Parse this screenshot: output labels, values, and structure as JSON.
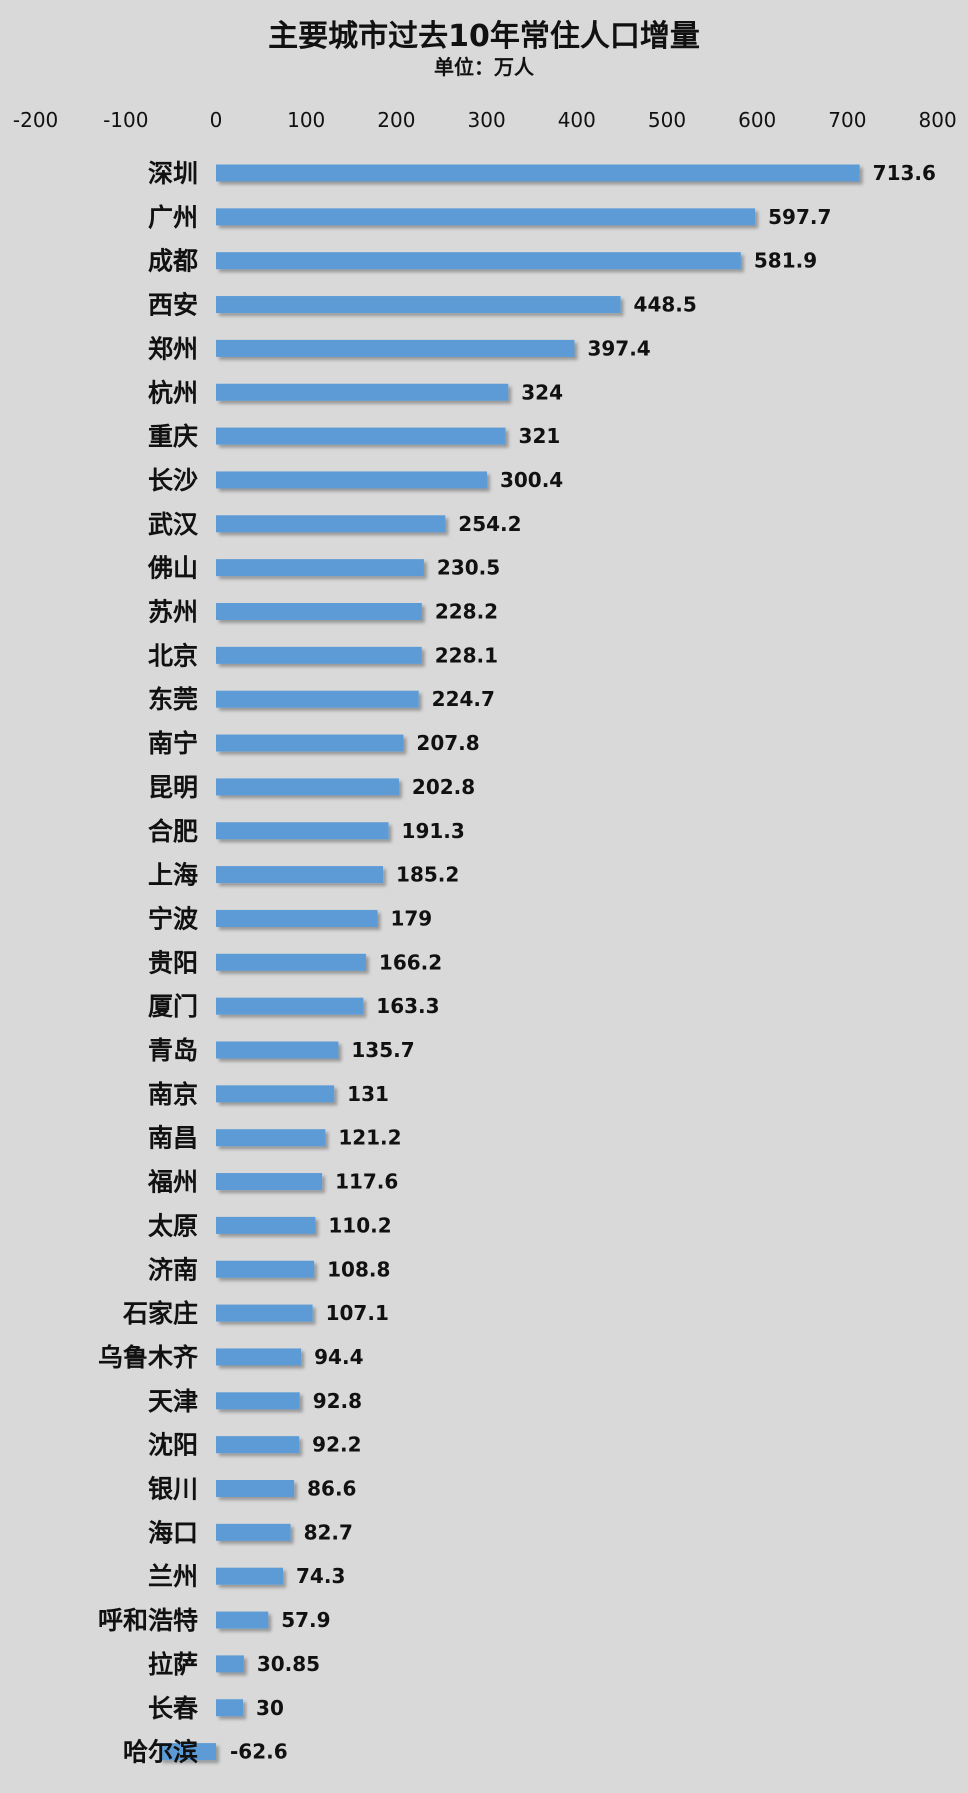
{
  "chart_data": {
    "type": "bar",
    "orientation": "horizontal",
    "title": "主要城市过去10年常住人口增量",
    "subtitle": "单位：万人",
    "xlim": [
      -200,
      800
    ],
    "x_ticks": [
      "-200",
      "-100",
      "0",
      "100",
      "200",
      "300",
      "400",
      "500",
      "600",
      "700",
      "800"
    ],
    "grid": false,
    "legend": "none",
    "bar_color": "#5b9bd5",
    "categories": [
      "深圳",
      "广州",
      "成都",
      "西安",
      "郑州",
      "杭州",
      "重庆",
      "长沙",
      "武汉",
      "佛山",
      "苏州",
      "北京",
      "东莞",
      "南宁",
      "昆明",
      "合肥",
      "上海",
      "宁波",
      "贵阳",
      "厦门",
      "青岛",
      "南京",
      "南昌",
      "福州",
      "太原",
      "济南",
      "石家庄",
      "乌鲁木齐",
      "天津",
      "沈阳",
      "银川",
      "海口",
      "兰州",
      "呼和浩特",
      "拉萨",
      "长春",
      "哈尔滨"
    ],
    "values": [
      713.6,
      597.7,
      581.9,
      448.5,
      397.4,
      324,
      321,
      300.4,
      254.2,
      230.5,
      228.2,
      228.1,
      224.7,
      207.8,
      202.8,
      191.3,
      185.2,
      179,
      166.2,
      163.3,
      135.7,
      131,
      121.2,
      117.6,
      110.2,
      108.8,
      107.1,
      94.4,
      92.8,
      92.2,
      86.6,
      82.7,
      74.3,
      57.9,
      30.85,
      30,
      -62.6
    ],
    "value_labels": [
      "713.6",
      "597.7",
      "581.9",
      "448.5",
      "397.4",
      "324",
      "321",
      "300.4",
      "254.2",
      "230.5",
      "228.2",
      "228.1",
      "224.7",
      "207.8",
      "202.8",
      "191.3",
      "185.2",
      "179",
      "166.2",
      "163.3",
      "135.7",
      "131",
      "121.2",
      "117.6",
      "110.2",
      "108.8",
      "107.1",
      "94.4",
      "92.8",
      "92.2",
      "86.6",
      "82.7",
      "74.3",
      "57.9",
      "30.85",
      "30",
      "-62.6"
    ]
  }
}
